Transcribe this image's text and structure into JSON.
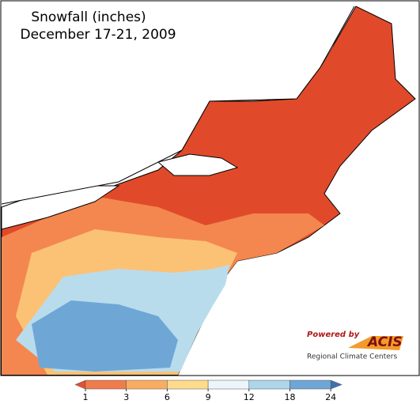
{
  "title": [
    "Snowfall (inches)",
    "December 17-21, 2009"
  ],
  "legend": {
    "ticks": [
      1,
      3,
      6,
      9,
      12,
      18,
      24
    ],
    "colors": [
      "#e4502e",
      "#f07c4c",
      "#f9ad62",
      "#fedc8c",
      "#eaf6f9",
      "#acd6ea",
      "#6ea7d6",
      "#3f70b2"
    ]
  },
  "logo": {
    "powered": "Powered by",
    "name": "ACIS",
    "org": "Regional Climate Centers"
  }
}
